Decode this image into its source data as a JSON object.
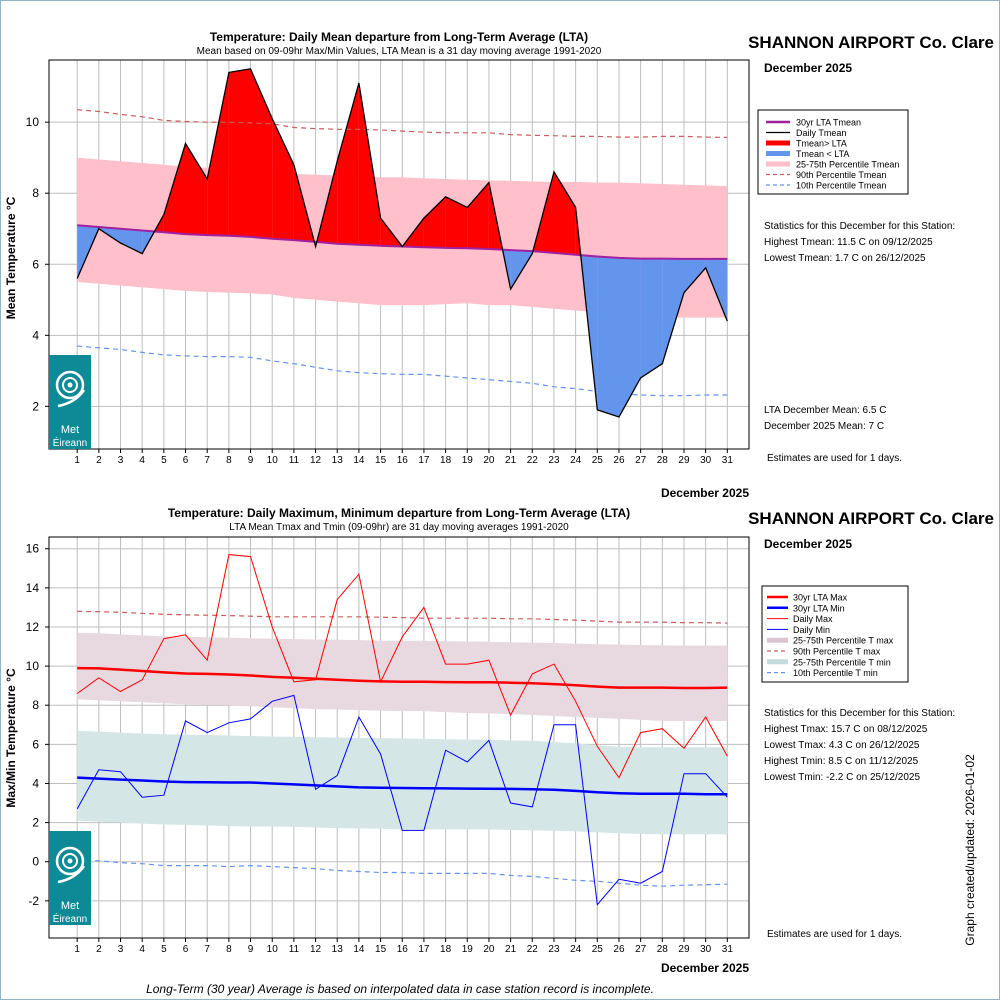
{
  "colors": {
    "lta": "#a020a0",
    "above": "#ff0000",
    "below": "#6495ed",
    "band_mean": "#ffc0cb",
    "p90": "#cd5c5c",
    "p10": "#6495ed",
    "band_max": "#e8d8e0",
    "band_min": "#d4e6e6",
    "tmax": "#ff0000",
    "tmin": "#0000ff",
    "logo": "#0e8a96",
    "grid": "#bebebe"
  },
  "footer": "Long-Term (30 year) Average is based on interpolated data in case station record is incomplete.",
  "updated": "Graph created/updated:  2026-01-02",
  "chart_data": [
    {
      "type": "area",
      "title": "Temperature: Daily Mean departure from Long-Term Average (LTA)",
      "subtitle": "Mean based on 09-09hr Max/Min Values, LTA Mean is a 31 day moving average 1991-2020",
      "station": "SHANNON AIRPORT Co. Clare",
      "month": "December 2025",
      "xlabel": "December 2025",
      "ylabel": "Mean Temperature °C",
      "x": [
        1,
        2,
        3,
        4,
        5,
        6,
        7,
        8,
        9,
        10,
        11,
        12,
        13,
        14,
        15,
        16,
        17,
        18,
        19,
        20,
        21,
        22,
        23,
        24,
        25,
        26,
        27,
        28,
        29,
        30,
        31
      ],
      "xlim": [
        -0.3,
        32
      ],
      "ylim": [
        0.8,
        11.75
      ],
      "yticks": [
        2,
        4,
        6,
        8,
        10
      ],
      "series": [
        {
          "name": "Daily Tmean",
          "values": [
            5.6,
            7.0,
            6.6,
            6.3,
            7.4,
            9.4,
            8.4,
            11.4,
            11.5,
            10.1,
            8.8,
            6.5,
            8.9,
            11.1,
            7.3,
            6.5,
            7.3,
            7.9,
            7.6,
            8.3,
            5.3,
            6.3,
            8.6,
            7.6,
            1.9,
            1.7,
            2.8,
            3.2,
            5.2,
            5.9,
            4.4
          ]
        },
        {
          "name": "30yr LTA Tmean",
          "values": [
            7.1,
            7.05,
            7.0,
            6.95,
            6.9,
            6.85,
            6.82,
            6.8,
            6.77,
            6.72,
            6.68,
            6.63,
            6.58,
            6.55,
            6.52,
            6.5,
            6.48,
            6.46,
            6.45,
            6.43,
            6.4,
            6.37,
            6.32,
            6.27,
            6.22,
            6.18,
            6.16,
            6.16,
            6.15,
            6.15,
            6.15
          ]
        },
        {
          "name": "90th Percentile Tmean",
          "values": [
            10.35,
            10.3,
            10.22,
            10.15,
            10.05,
            10.02,
            10.0,
            10.0,
            9.98,
            9.95,
            9.85,
            9.82,
            9.8,
            9.8,
            9.78,
            9.75,
            9.72,
            9.7,
            9.7,
            9.7,
            9.65,
            9.63,
            9.62,
            9.6,
            9.6,
            9.58,
            9.58,
            9.6,
            9.6,
            9.58,
            9.57
          ]
        },
        {
          "name": "10th Percentile Tmean",
          "values": [
            3.7,
            3.65,
            3.6,
            3.52,
            3.45,
            3.42,
            3.4,
            3.4,
            3.38,
            3.28,
            3.2,
            3.1,
            3.0,
            2.95,
            2.92,
            2.9,
            2.9,
            2.85,
            2.8,
            2.75,
            2.7,
            2.65,
            2.55,
            2.5,
            2.42,
            2.35,
            2.32,
            2.3,
            2.3,
            2.32,
            2.32
          ]
        },
        {
          "name": "75th Percentile Tmean",
          "values": [
            9.0,
            8.95,
            8.9,
            8.85,
            8.8,
            8.75,
            8.72,
            8.7,
            8.65,
            8.6,
            8.55,
            8.52,
            8.5,
            8.48,
            8.45,
            8.45,
            8.42,
            8.4,
            8.38,
            8.36,
            8.35,
            8.33,
            8.32,
            8.32,
            8.3,
            8.3,
            8.28,
            8.26,
            8.24,
            8.22,
            8.2
          ]
        },
        {
          "name": "25th Percentile Tmean",
          "values": [
            5.5,
            5.45,
            5.4,
            5.35,
            5.3,
            5.25,
            5.22,
            5.2,
            5.18,
            5.15,
            5.05,
            5.0,
            4.95,
            4.9,
            4.85,
            4.85,
            4.85,
            4.88,
            4.9,
            4.85,
            4.85,
            4.8,
            4.75,
            4.7,
            4.65,
            4.6,
            4.55,
            4.5,
            4.5,
            4.5,
            4.5
          ]
        }
      ],
      "legend": [
        "30yr LTA Tmean",
        "Daily Tmean",
        "Tmean> LTA",
        "Tmean < LTA",
        "25-75th Percentile Tmean",
        "90th Percentile Tmean",
        "10th Percentile Tmean"
      ],
      "stats_title": "Statistics for this December for this Station:",
      "stats": [
        "Highest Tmean: 11.5 C on 09/12/2025",
        "Lowest Tmean: 1.7 C on 26/12/2025"
      ],
      "summary": [
        "LTA December Mean: 6.5 C",
        "December 2025 Mean: 7 C"
      ],
      "estimates": "Estimates are used for 1 days."
    },
    {
      "type": "line",
      "title": "Temperature: Daily Maximum, Minimum departure from Long-Term Average (LTA)",
      "subtitle": "LTA Mean Tmax and Tmin (09-09hr) are 31 day moving averages 1991-2020",
      "station": "SHANNON AIRPORT Co. Clare",
      "month": "December 2025",
      "xlabel": "December 2025",
      "ylabel": "Max/Min Temperature °C",
      "x": [
        1,
        2,
        3,
        4,
        5,
        6,
        7,
        8,
        9,
        10,
        11,
        12,
        13,
        14,
        15,
        16,
        17,
        18,
        19,
        20,
        21,
        22,
        23,
        24,
        25,
        26,
        27,
        28,
        29,
        30,
        31
      ],
      "xlim": [
        -0.3,
        32
      ],
      "ylim": [
        -3.9,
        16.6
      ],
      "yticks": [
        -2,
        0,
        2,
        4,
        6,
        8,
        10,
        12,
        14,
        16
      ],
      "series": [
        {
          "name": "Daily Max",
          "values": [
            8.6,
            9.4,
            8.7,
            9.3,
            11.4,
            11.6,
            10.3,
            15.7,
            15.6,
            12.0,
            9.2,
            9.3,
            13.4,
            14.7,
            9.2,
            11.5,
            13.0,
            10.1,
            10.1,
            10.3,
            7.5,
            9.6,
            10.1,
            8.2,
            5.9,
            4.3,
            6.6,
            6.8,
            5.8,
            7.4,
            5.4
          ]
        },
        {
          "name": "Daily Min",
          "values": [
            2.7,
            4.7,
            4.6,
            3.3,
            3.4,
            7.2,
            6.6,
            7.1,
            7.3,
            8.2,
            8.5,
            3.7,
            4.4,
            7.4,
            5.5,
            1.6,
            1.6,
            5.7,
            5.1,
            6.2,
            3.0,
            2.8,
            7.0,
            7.0,
            -2.2,
            -0.9,
            -1.1,
            -0.5,
            4.5,
            4.5,
            3.3
          ]
        },
        {
          "name": "30yr LTA Max",
          "values": [
            9.9,
            9.88,
            9.82,
            9.75,
            9.68,
            9.62,
            9.6,
            9.57,
            9.52,
            9.45,
            9.4,
            9.35,
            9.3,
            9.25,
            9.22,
            9.2,
            9.2,
            9.18,
            9.17,
            9.17,
            9.15,
            9.12,
            9.08,
            9.02,
            8.95,
            8.9,
            8.9,
            8.9,
            8.88,
            8.88,
            8.9
          ]
        },
        {
          "name": "30yr LTA Min",
          "values": [
            4.3,
            4.25,
            4.2,
            4.15,
            4.1,
            4.07,
            4.06,
            4.05,
            4.05,
            4.0,
            3.95,
            3.9,
            3.85,
            3.8,
            3.78,
            3.77,
            3.76,
            3.75,
            3.74,
            3.73,
            3.72,
            3.7,
            3.68,
            3.62,
            3.55,
            3.5,
            3.47,
            3.47,
            3.47,
            3.45,
            3.45
          ]
        },
        {
          "name": "90th Percentile T max",
          "values": [
            12.8,
            12.78,
            12.75,
            12.7,
            12.65,
            12.62,
            12.6,
            12.58,
            12.55,
            12.52,
            12.52,
            12.52,
            12.52,
            12.52,
            12.5,
            12.48,
            12.45,
            12.45,
            12.45,
            12.45,
            12.42,
            12.42,
            12.38,
            12.35,
            12.3,
            12.25,
            12.25,
            12.25,
            12.22,
            12.22,
            12.2
          ]
        },
        {
          "name": "10th Percentile T min",
          "values": [
            0.05,
            0.05,
            -0.05,
            -0.1,
            -0.2,
            -0.2,
            -0.2,
            -0.25,
            -0.2,
            -0.25,
            -0.3,
            -0.35,
            -0.45,
            -0.5,
            -0.55,
            -0.55,
            -0.6,
            -0.6,
            -0.6,
            -0.6,
            -0.7,
            -0.75,
            -0.85,
            -0.95,
            -1.0,
            -1.1,
            -1.2,
            -1.25,
            -1.2,
            -1.18,
            -1.15
          ]
        },
        {
          "name": "75th Percentile T max",
          "values": [
            11.7,
            11.68,
            11.62,
            11.57,
            11.52,
            11.5,
            11.48,
            11.45,
            11.42,
            11.4,
            11.38,
            11.36,
            11.35,
            11.33,
            11.3,
            11.3,
            11.3,
            11.28,
            11.26,
            11.24,
            11.22,
            11.2,
            11.18,
            11.15,
            11.12,
            11.1,
            11.08,
            11.06,
            11.05,
            11.05,
            11.05
          ]
        },
        {
          "name": "25th Percentile T max",
          "values": [
            8.3,
            8.25,
            8.2,
            8.15,
            8.1,
            8.05,
            8.02,
            8.0,
            7.95,
            7.9,
            7.85,
            7.8,
            7.78,
            7.75,
            7.72,
            7.7,
            7.7,
            7.65,
            7.6,
            7.58,
            7.55,
            7.5,
            7.45,
            7.4,
            7.35,
            7.3,
            7.25,
            7.2,
            7.2,
            7.2,
            7.2
          ]
        },
        {
          "name": "75th Percentile T min",
          "values": [
            6.7,
            6.65,
            6.6,
            6.55,
            6.52,
            6.5,
            6.48,
            6.45,
            6.42,
            6.4,
            6.38,
            6.36,
            6.35,
            6.33,
            6.32,
            6.3,
            6.28,
            6.26,
            6.25,
            6.23,
            6.2,
            6.18,
            6.12,
            6.05,
            5.95,
            5.88,
            5.85,
            5.85,
            5.85,
            5.85,
            5.85
          ]
        },
        {
          "name": "25th Percentile T min",
          "values": [
            2.1,
            2.05,
            2.0,
            1.95,
            1.9,
            1.88,
            1.85,
            1.82,
            1.8,
            1.8,
            1.78,
            1.75,
            1.72,
            1.7,
            1.68,
            1.65,
            1.65,
            1.65,
            1.65,
            1.65,
            1.62,
            1.6,
            1.58,
            1.55,
            1.5,
            1.45,
            1.42,
            1.4,
            1.4,
            1.4,
            1.4
          ]
        }
      ],
      "legend": [
        "30yr LTA Max",
        "30yr LTA Min",
        "Daily Max",
        "Daily Min",
        "25-75th Percentile T max",
        "90th Percentile T max",
        "25-75th Percentile T min",
        "10th Percentile T min"
      ],
      "stats_title": "Statistics for this December for this Station:",
      "stats": [
        "Highest Tmax: 15.7 C on 08/12/2025",
        "Lowest Tmax: 4.3 C on 26/12/2025",
        "Highest Tmin: 8.5 C on 11/12/2025",
        "Lowest Tmin: -2.2 C on 25/12/2025"
      ],
      "estimates": "Estimates are used for 1 days."
    }
  ],
  "logo": {
    "text_line1": "Met",
    "text_line2": "Éireann"
  }
}
